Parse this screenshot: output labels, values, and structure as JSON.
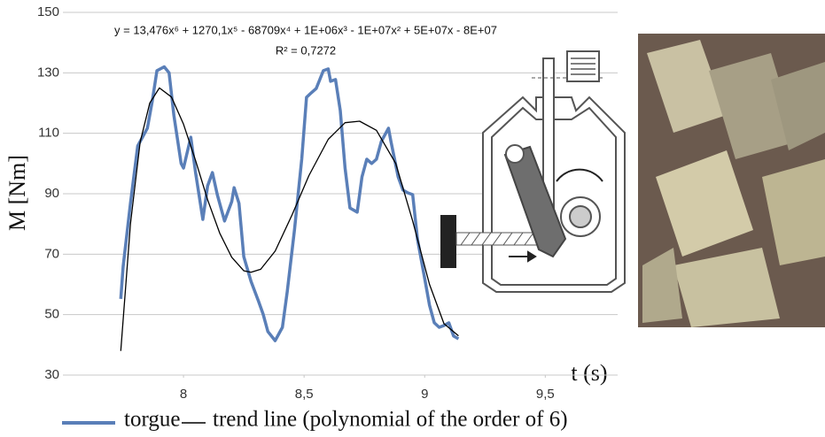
{
  "chart_data": {
    "type": "line",
    "annotations": [
      "y = 13,476x⁶ + 1270,1x⁵ - 68709x⁴ + 1E+06x³ - 1E+07x² + 5E+07x - 8E+07",
      "R² = 0,7272"
    ],
    "xlabel": "t (s)",
    "ylabel": "M [Nm]",
    "xlim": [
      7.5,
      9.8
    ],
    "xticks": [
      8,
      {
        "value": 8.5,
        "label": "8,5"
      },
      9,
      {
        "value": 9.5,
        "label": "9,5"
      }
    ],
    "ylim": [
      30,
      150
    ],
    "yticks": [
      30,
      50,
      70,
      90,
      110,
      130,
      150
    ],
    "grid": true,
    "series": [
      {
        "name": "torgue",
        "color": "#5a7fb8",
        "x": [
          7.74,
          7.75,
          7.78,
          7.81,
          7.85,
          7.87,
          7.89,
          7.92,
          7.94,
          7.96,
          7.99,
          8.0,
          8.03,
          8.05,
          8.08,
          8.1,
          8.12,
          8.14,
          8.17,
          8.2,
          8.21,
          8.23,
          8.25,
          8.28,
          8.31,
          8.33,
          8.35,
          8.38,
          8.41,
          8.43,
          8.46,
          8.49,
          8.51,
          8.53,
          8.55,
          8.58,
          8.6,
          8.61,
          8.63,
          8.65,
          8.67,
          8.69,
          8.72,
          8.74,
          8.76,
          8.78,
          8.8,
          8.82,
          8.85,
          8.86,
          8.89,
          8.91,
          8.93,
          8.95,
          8.97,
          9.0,
          9.02,
          9.04,
          9.06,
          9.08,
          9.1,
          9.12,
          9.14
        ],
        "values": [
          55.2,
          66,
          86.8,
          105.8,
          111.7,
          120.4,
          130.7,
          132,
          130,
          116,
          100,
          98.5,
          108.7,
          97,
          81.5,
          92.6,
          97,
          89.7,
          81,
          87.4,
          92,
          86.8,
          69.2,
          61,
          54.6,
          50.2,
          44.4,
          41.4,
          45.8,
          57.5,
          78,
          101.4,
          121.9,
          123.4,
          124.8,
          130.7,
          131.3,
          127.2,
          127.8,
          117.5,
          98.5,
          85.3,
          83.9,
          95.6,
          101.4,
          100,
          101.4,
          107.3,
          111.7,
          107.3,
          95.6,
          91.2,
          90.3,
          89.7,
          75,
          61.9,
          53.1,
          47.3,
          45.8,
          46.4,
          47.3,
          42.9,
          42
        ]
      },
      {
        "name": "trend line (polynomial of the order of 6)",
        "color": "#000000",
        "x": [
          7.74,
          7.78,
          7.82,
          7.86,
          7.9,
          7.95,
          8.0,
          8.05,
          8.1,
          8.15,
          8.2,
          8.25,
          8.28,
          8.32,
          8.38,
          8.45,
          8.52,
          8.6,
          8.67,
          8.73,
          8.8,
          8.88,
          8.95,
          9.02,
          9.08,
          9.14
        ],
        "values": [
          38,
          80,
          107,
          120,
          125,
          122,
          113,
          101,
          88,
          77,
          69,
          64.5,
          64,
          65,
          71,
          83,
          96,
          108,
          113.5,
          114,
          111,
          100,
          81,
          60,
          47,
          43
        ]
      }
    ]
  }
}
